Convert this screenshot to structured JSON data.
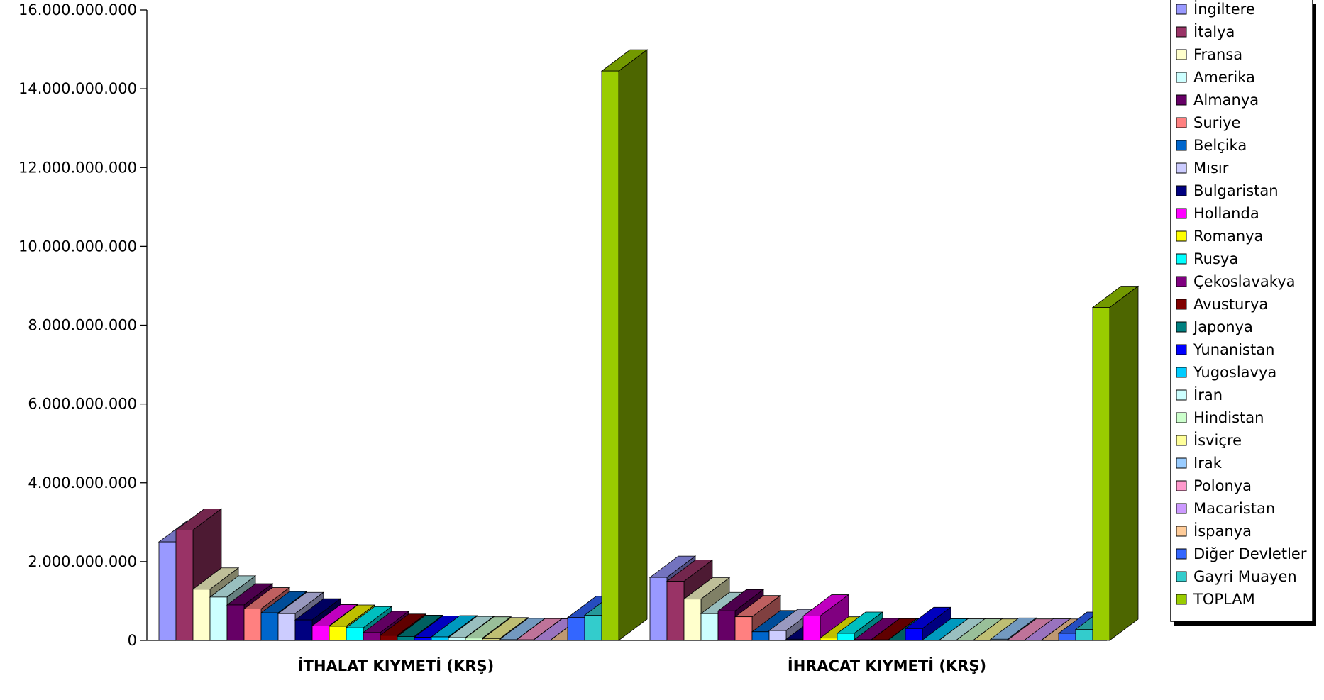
{
  "chart_data": {
    "type": "bar",
    "title": "",
    "xlabel": "",
    "ylabel": "",
    "ylim": [
      0,
      16000000000
    ],
    "yticks": [
      "0",
      "2.000.000.000",
      "4.000.000.000",
      "6.000.000.000",
      "8.000.000.000",
      "10.000.000.000",
      "12.000.000.000",
      "14.000.000.000",
      "16.000.000.000"
    ],
    "categories": [
      "İTHALAT KIYMETİ (KRŞ)",
      "İHRACAT KIYMETİ (KRŞ)"
    ],
    "grid": false,
    "legend_position": "right",
    "series": [
      {
        "name": "İngiltere",
        "color": "#9999ff",
        "values": [
          2500000000,
          1600000000
        ]
      },
      {
        "name": "İtalya",
        "color": "#993366",
        "values": [
          2800000000,
          1500000000
        ]
      },
      {
        "name": "Fransa",
        "color": "#ffffcc",
        "values": [
          1300000000,
          1050000000
        ]
      },
      {
        "name": "Amerika",
        "color": "#ccffff",
        "values": [
          1100000000,
          680000000
        ]
      },
      {
        "name": "Almanya",
        "color": "#660066",
        "values": [
          900000000,
          750000000
        ]
      },
      {
        "name": "Suriye",
        "color": "#ff8080",
        "values": [
          800000000,
          600000000
        ]
      },
      {
        "name": "Belçika",
        "color": "#0066cc",
        "values": [
          700000000,
          220000000
        ]
      },
      {
        "name": "Mısır",
        "color": "#ccccff",
        "values": [
          680000000,
          250000000
        ]
      },
      {
        "name": "Bulgaristan",
        "color": "#000080",
        "values": [
          520000000,
          30000000
        ]
      },
      {
        "name": "Hollanda",
        "color": "#ff00ff",
        "values": [
          370000000,
          620000000
        ]
      },
      {
        "name": "Romanya",
        "color": "#ffff00",
        "values": [
          360000000,
          60000000
        ]
      },
      {
        "name": "Rusya",
        "color": "#00ffff",
        "values": [
          320000000,
          180000000
        ]
      },
      {
        "name": "Çekoslavakya",
        "color": "#800080",
        "values": [
          200000000,
          20000000
        ]
      },
      {
        "name": "Avusturya",
        "color": "#800000",
        "values": [
          130000000,
          15000000
        ]
      },
      {
        "name": "Japonya",
        "color": "#008080",
        "values": [
          100000000,
          10000000
        ]
      },
      {
        "name": "Yunanistan",
        "color": "#0000ff",
        "values": [
          80000000,
          300000000
        ]
      },
      {
        "name": "Yugoslavya",
        "color": "#00ccff",
        "values": [
          90000000,
          10000000
        ]
      },
      {
        "name": "İran",
        "color": "#ccffff",
        "values": [
          70000000,
          8000000
        ]
      },
      {
        "name": "Hindistan",
        "color": "#ccffcc",
        "values": [
          60000000,
          8000000
        ]
      },
      {
        "name": "İsviçre",
        "color": "#ffff99",
        "values": [
          40000000,
          6000000
        ]
      },
      {
        "name": "Irak",
        "color": "#99ccff",
        "values": [
          20000000,
          30000000
        ]
      },
      {
        "name": "Polonya",
        "color": "#ff99cc",
        "values": [
          15000000,
          6000000
        ]
      },
      {
        "name": "Macaristan",
        "color": "#cc99ff",
        "values": [
          10000000,
          8000000
        ]
      },
      {
        "name": "İspanya",
        "color": "#ffcc99",
        "values": [
          8000000,
          5000000
        ]
      },
      {
        "name": "Diğer Devletler",
        "color": "#3366ff",
        "values": [
          580000000,
          180000000
        ]
      },
      {
        "name": "Gayri Muayen",
        "color": "#33cccc",
        "values": [
          640000000,
          280000000
        ]
      },
      {
        "name": "TOPLAM",
        "color": "#99cc00",
        "values": [
          14450000000,
          8450000000
        ]
      }
    ]
  }
}
